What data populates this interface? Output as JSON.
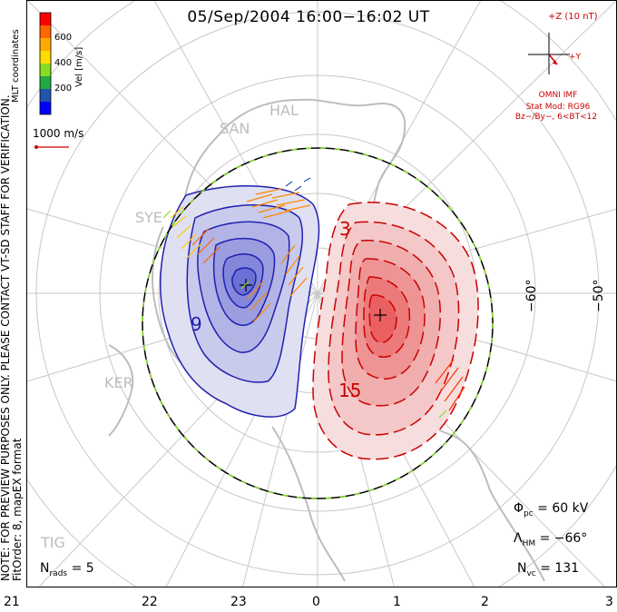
{
  "title": "05/Sep/2004  16:00−16:02  UT",
  "side_note": {
    "line1": "NOTE: FOR PREVIEW PURPOSES ONLY. PLEASE CONTACT VT-SD STAFF FOR VERIFICATION.",
    "line2": "FitOrder: 8, mapEX format"
  },
  "coords_label": "MLT coordinates",
  "colorbar": {
    "title": "Vel [m/s]",
    "ticks": [
      "600",
      "400",
      "200"
    ],
    "colors": [
      "#ff0000",
      "#ff6600",
      "#ffaa00",
      "#ffdd00",
      "#88dd22",
      "#22aa44",
      "#2255aa",
      "#0000ff"
    ]
  },
  "vector_scale": "1000 m/s",
  "imf": {
    "z_label": "+Z (10 nT)",
    "y_label": "+Y",
    "source": "OMNI IMF",
    "model_line1": "Stat Mod: RG96",
    "model_line2": "Bz−/By−, 6<BT<12"
  },
  "stations": [
    "SAN",
    "HAL",
    "SYE",
    "KER",
    "TIG"
  ],
  "contour_labels": [
    "3",
    "15",
    "9"
  ],
  "lat_labels": [
    "−60°",
    "−50°"
  ],
  "mlt_ticks": [
    "21",
    "22",
    "23",
    "0",
    "1",
    "2",
    "3"
  ],
  "stats": {
    "phi_pc": "Φ",
    "phi_sub": "pc",
    "phi_val": "= 60 kV",
    "lambda": "Λ",
    "lambda_sub": "HM",
    "lambda_val": "= −66°",
    "nvc": "N",
    "nvc_sub": "vc",
    "nvc_val": "= 131",
    "nrads": "N",
    "nrads_sub": "rads",
    "nrads_val": "= 5"
  },
  "potential": {
    "positive_color": "#e03030",
    "negative_color": "#2020b0"
  }
}
